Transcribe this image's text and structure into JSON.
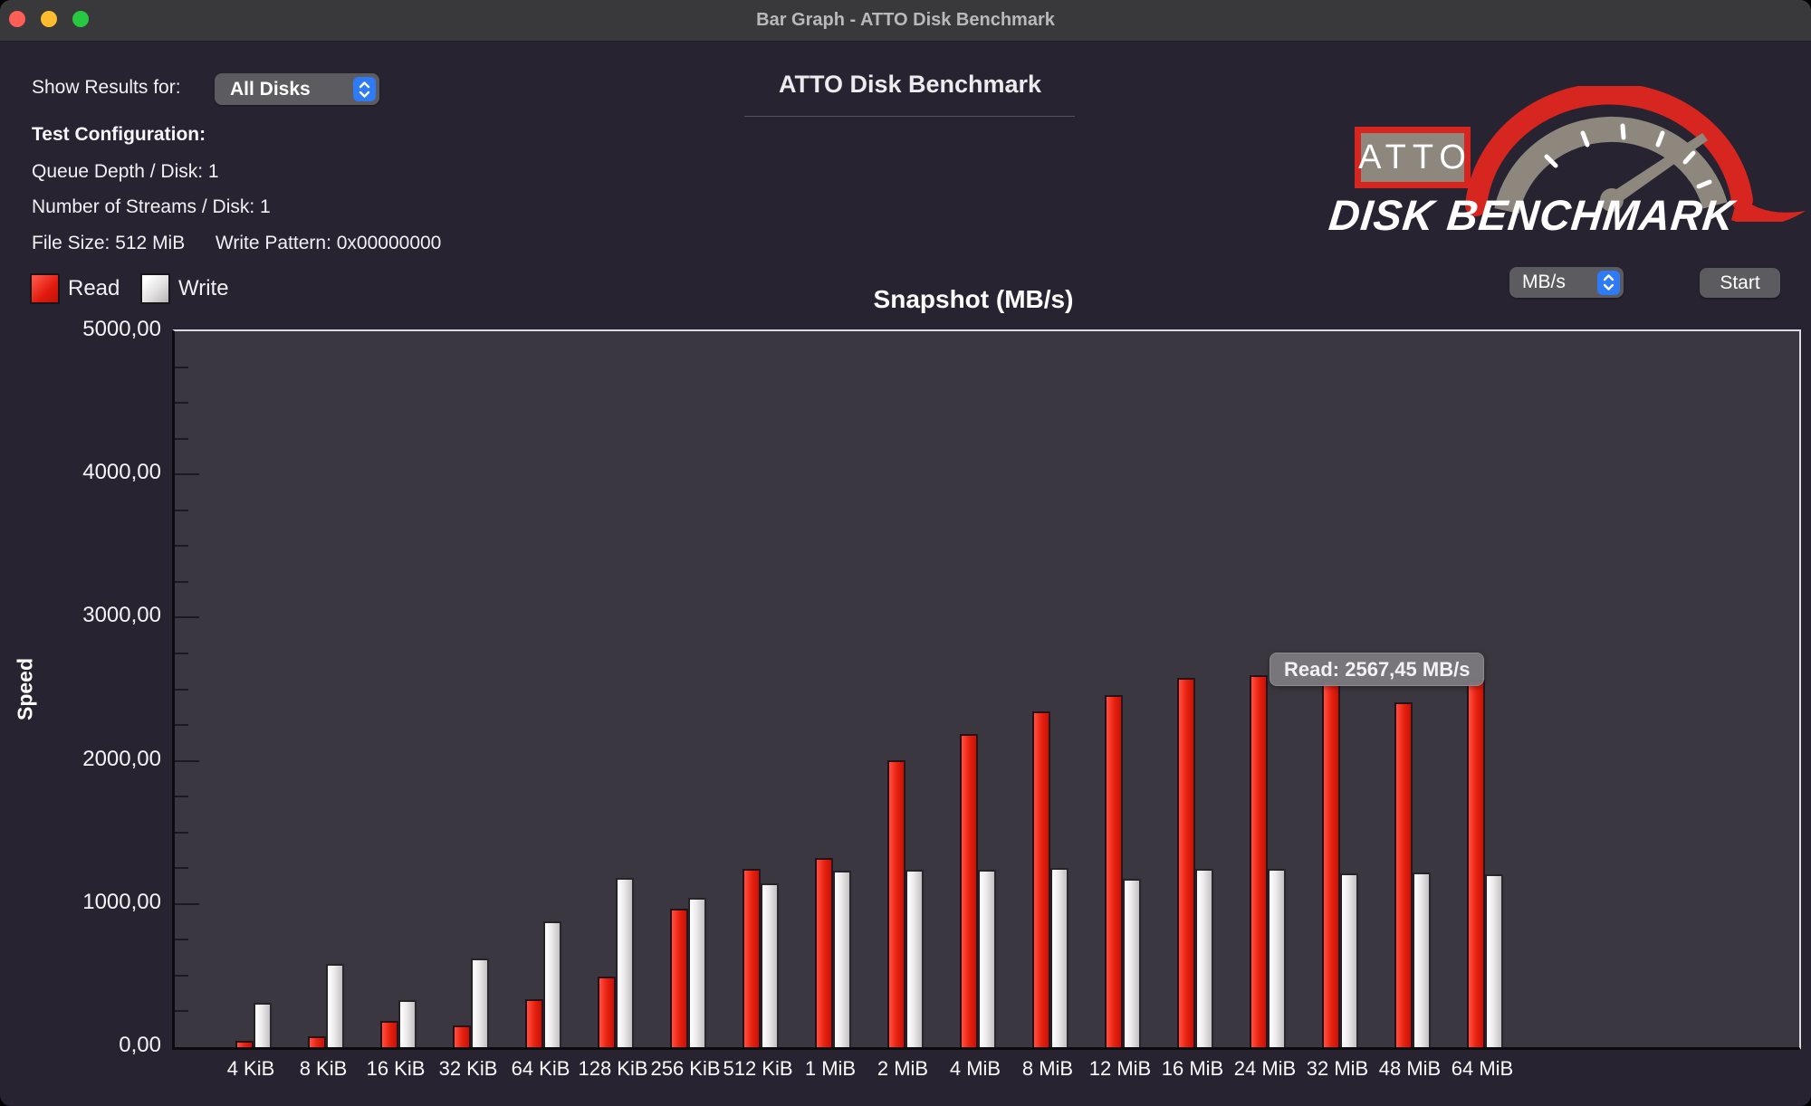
{
  "window": {
    "title": "Bar Graph - ATTO Disk Benchmark"
  },
  "toolbar": {
    "show_results_label": "Show Results for:",
    "disk_selector_value": "All Disks",
    "unit_selector_value": "MB/s",
    "start_button_label": "Start"
  },
  "header": {
    "app_title": "ATTO Disk Benchmark"
  },
  "test_configuration": {
    "heading": "Test Configuration:",
    "queue_depth": "Queue Depth / Disk: 1",
    "streams": "Number of Streams / Disk: 1",
    "file_size": "File Size: 512 MiB",
    "write_pattern": "Write Pattern: 0x00000000"
  },
  "legend": {
    "read_label": "Read",
    "write_label": "Write"
  },
  "logo": {
    "badge_text": "ATTO",
    "wordmark": "DISK BENCHMARK"
  },
  "tooltip": {
    "text": "Read: 2567,45 MB/s"
  },
  "colors": {
    "read": "#e6200f",
    "write": "#efefef",
    "accent_blue": "#2e7bf5",
    "logo_red": "#d7251f",
    "logo_gray": "#8e877d",
    "plot_background": "#3a3741",
    "window_background": "#272331"
  },
  "chart_data": {
    "type": "bar",
    "title": "Snapshot (MB/s)",
    "ylabel": "Speed",
    "xlabel": "",
    "ylim": [
      0,
      5000
    ],
    "y_tick_step": 1000,
    "y_minor_tick_step": 250,
    "y_tick_labels": [
      "0,00",
      "1000,00",
      "2000,00",
      "3000,00",
      "4000,00",
      "5000,00"
    ],
    "grid": false,
    "legend_position": "top-left",
    "categories": [
      "4 KiB",
      "8 KiB",
      "16 KiB",
      "32 KiB",
      "64 KiB",
      "128 KiB",
      "256 KiB",
      "512 KiB",
      "1 MiB",
      "2 MiB",
      "4 MiB",
      "8 MiB",
      "12 MiB",
      "16 MiB",
      "24 MiB",
      "32 MiB",
      "48 MiB",
      "64 MiB"
    ],
    "series": [
      {
        "name": "Read",
        "color": "#e6200f",
        "values": [
          44,
          76,
          184,
          152,
          335,
          494,
          965,
          1247,
          1321,
          2005,
          2190,
          2348,
          2456,
          2576,
          2595,
          2567.45,
          2411,
          2569
        ]
      },
      {
        "name": "Write",
        "color": "#efefef",
        "values": [
          310,
          582,
          330,
          620,
          880,
          1183,
          1046,
          1146,
          1234,
          1240,
          1240,
          1253,
          1177,
          1247,
          1247,
          1215,
          1221,
          1209
        ]
      }
    ],
    "highlighted_bar": {
      "category": "32 MiB",
      "series": "Read",
      "value_label": "Read: 2567,45 MB/s"
    }
  }
}
